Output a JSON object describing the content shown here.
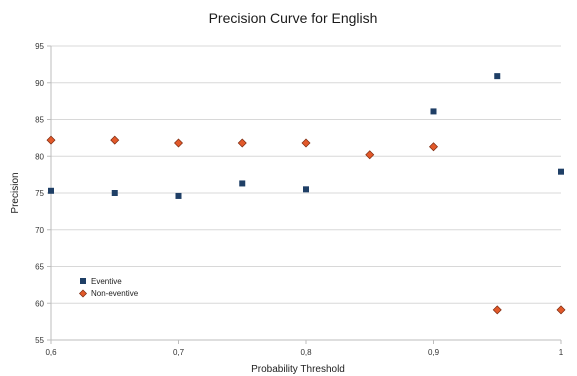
{
  "chart_data": {
    "type": "scatter",
    "title": "Precision Curve for English",
    "xlabel": "Probability Threshold",
    "ylabel": "Precision",
    "xlim": [
      0.6,
      1.0
    ],
    "ylim": [
      55,
      95
    ],
    "x_ticks": [
      0.6,
      0.7,
      0.8,
      0.9,
      1.0
    ],
    "x_tick_labels": [
      "0,6",
      "0,7",
      "0,8",
      "0,9",
      "1"
    ],
    "y_ticks": [
      55,
      60,
      65,
      70,
      75,
      80,
      85,
      90,
      95
    ],
    "y_tick_labels": [
      "55",
      "60",
      "65",
      "70",
      "75",
      "80",
      "85",
      "90",
      "95"
    ],
    "grid": "horizontal",
    "legend_position": "bottom-left",
    "series": [
      {
        "name": "Eventive",
        "marker": "square",
        "color": "#1f3f66",
        "points": [
          {
            "x": 0.6,
            "y": 75.3
          },
          {
            "x": 0.65,
            "y": 75.0
          },
          {
            "x": 0.7,
            "y": 74.6
          },
          {
            "x": 0.75,
            "y": 76.3
          },
          {
            "x": 0.8,
            "y": 75.5
          },
          {
            "x": 0.9,
            "y": 86.1
          },
          {
            "x": 0.95,
            "y": 90.9
          },
          {
            "x": 1.0,
            "y": 77.9
          }
        ]
      },
      {
        "name": "Non-eventive",
        "marker": "diamond",
        "color": "#e2592a",
        "stroke": "#7a2a10",
        "points": [
          {
            "x": 0.6,
            "y": 82.2
          },
          {
            "x": 0.65,
            "y": 82.2
          },
          {
            "x": 0.7,
            "y": 81.8
          },
          {
            "x": 0.75,
            "y": 81.8
          },
          {
            "x": 0.8,
            "y": 81.8
          },
          {
            "x": 0.85,
            "y": 80.2
          },
          {
            "x": 0.9,
            "y": 81.3
          },
          {
            "x": 0.95,
            "y": 59.1
          },
          {
            "x": 1.0,
            "y": 59.1
          }
        ]
      }
    ]
  }
}
